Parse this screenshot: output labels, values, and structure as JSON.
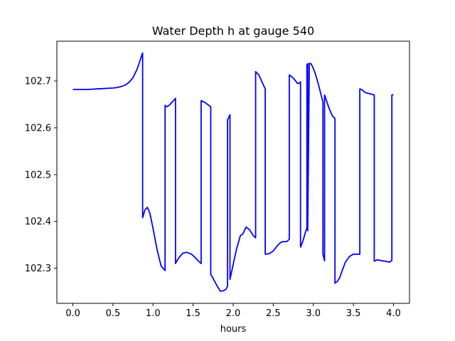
{
  "chart_data": {
    "type": "line",
    "title": "Water Depth h at gauge 540",
    "xlabel": "hours",
    "ylabel": "",
    "xlim": [
      -0.2,
      4.2
    ],
    "ylim": [
      102.225,
      102.785
    ],
    "xticks": [
      0.0,
      0.5,
      1.0,
      1.5,
      2.0,
      2.5,
      3.0,
      3.5,
      4.0
    ],
    "xtick_labels": [
      "0.0",
      "0.5",
      "1.0",
      "1.5",
      "2.0",
      "2.5",
      "3.0",
      "3.5",
      "4.0"
    ],
    "yticks": [
      102.3,
      102.4,
      102.5,
      102.6,
      102.7
    ],
    "ytick_labels": [
      "102.3",
      "102.4",
      "102.5",
      "102.6",
      "102.7"
    ],
    "grid": false,
    "color": "#0000ff",
    "series": [
      {
        "x": [
          0.0,
          0.1,
          0.2,
          0.3,
          0.4,
          0.5,
          0.55,
          0.6,
          0.65,
          0.7,
          0.75,
          0.8,
          0.84,
          0.87,
          0.87,
          0.9,
          0.93,
          0.96,
          1.0,
          1.05,
          1.1,
          1.15,
          1.15,
          1.17,
          1.2,
          1.25,
          1.28,
          1.28,
          1.32,
          1.37,
          1.42,
          1.48,
          1.53,
          1.58,
          1.6,
          1.6,
          1.64,
          1.68,
          1.72,
          1.72,
          1.75,
          1.8,
          1.84,
          1.88,
          1.91,
          1.93,
          1.93,
          1.96,
          1.96,
          1.99,
          2.04,
          2.09,
          2.12,
          2.16,
          2.2,
          2.25,
          2.28,
          2.28,
          2.32,
          2.36,
          2.4,
          2.4,
          2.45,
          2.5,
          2.56,
          2.6,
          2.64,
          2.67,
          2.7,
          2.7,
          2.74,
          2.78,
          2.8,
          2.82,
          2.84,
          2.84,
          2.87,
          2.9,
          2.92,
          2.92,
          2.93,
          2.93,
          2.95,
          2.97,
          2.99,
          3.02,
          3.06,
          3.1,
          3.12,
          3.12,
          3.14,
          3.14,
          3.17,
          3.2,
          3.24,
          3.27,
          3.27,
          3.3,
          3.33,
          3.36,
          3.4,
          3.45,
          3.5,
          3.54,
          3.58,
          3.58,
          3.6,
          3.65,
          3.7,
          3.76,
          3.76,
          3.8,
          3.85,
          3.9,
          3.95,
          3.98,
          3.98,
          4.0
        ],
        "y": [
          102.682,
          102.682,
          102.682,
          102.683,
          102.684,
          102.685,
          102.686,
          102.688,
          102.691,
          102.697,
          102.707,
          102.725,
          102.745,
          102.76,
          102.408,
          102.425,
          102.43,
          102.418,
          102.385,
          102.34,
          102.305,
          102.295,
          102.648,
          102.645,
          102.648,
          102.657,
          102.663,
          102.31,
          102.322,
          102.332,
          102.334,
          102.33,
          102.322,
          102.313,
          102.31,
          102.658,
          102.655,
          102.65,
          102.645,
          102.287,
          102.278,
          102.262,
          102.251,
          102.252,
          102.255,
          102.262,
          102.617,
          102.628,
          102.276,
          102.3,
          102.34,
          102.37,
          102.373,
          102.388,
          102.383,
          102.37,
          102.365,
          102.72,
          102.713,
          102.698,
          102.683,
          102.33,
          102.331,
          102.337,
          102.35,
          102.356,
          102.357,
          102.357,
          102.362,
          102.713,
          102.708,
          102.7,
          102.695,
          102.695,
          102.698,
          102.345,
          102.358,
          102.376,
          102.387,
          102.735,
          102.737,
          102.38,
          102.738,
          102.737,
          102.731,
          102.718,
          102.695,
          102.668,
          102.655,
          102.33,
          102.316,
          102.67,
          102.655,
          102.64,
          102.625,
          102.62,
          102.268,
          102.272,
          102.28,
          102.295,
          102.313,
          102.325,
          102.33,
          102.33,
          102.33,
          102.683,
          102.682,
          102.675,
          102.673,
          102.67,
          102.315,
          102.318,
          102.316,
          102.315,
          102.313,
          102.317,
          102.67,
          102.671
        ]
      }
    ]
  }
}
